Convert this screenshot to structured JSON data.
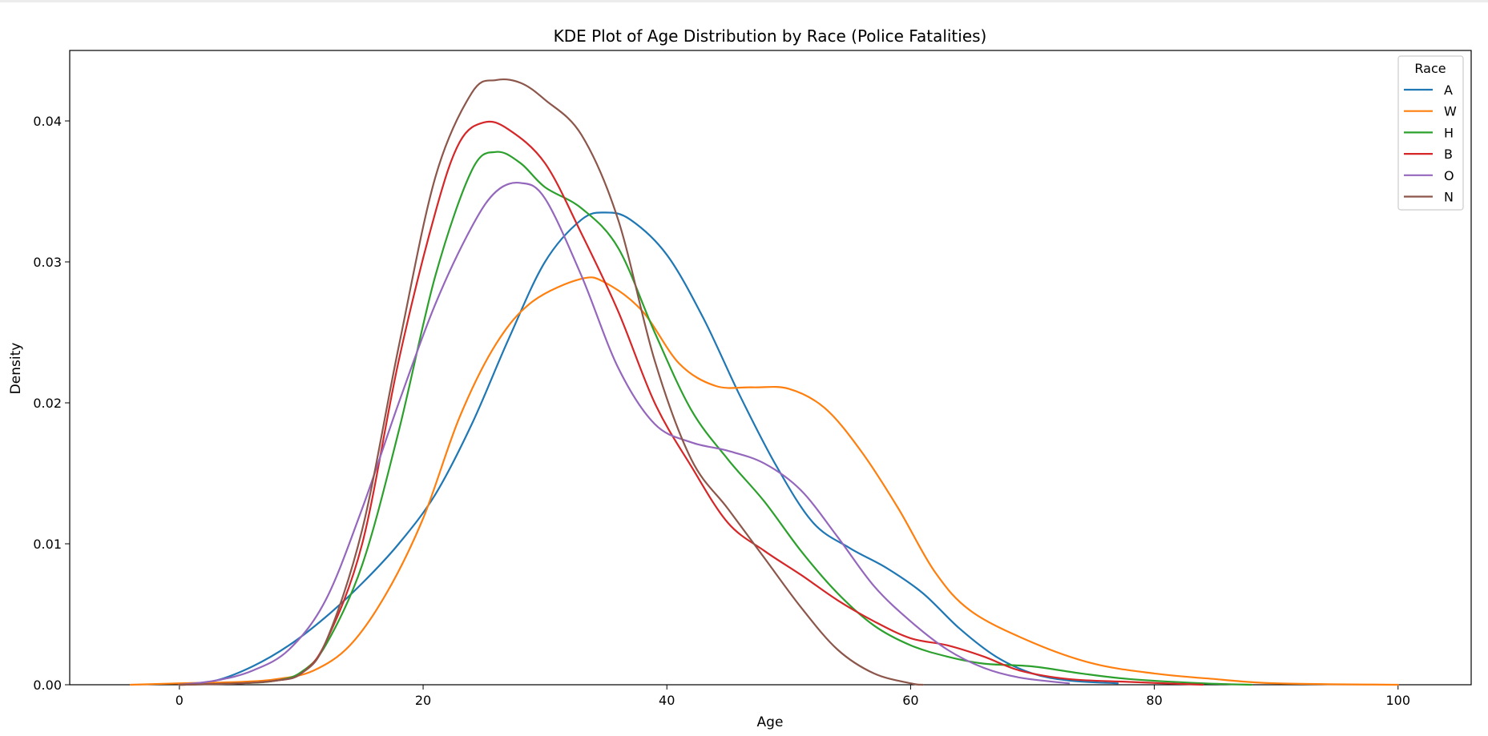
{
  "chart_data": {
    "type": "line",
    "title": "KDE Plot of Age Distribution by Race (Police Fatalities)",
    "xlabel": "Age",
    "ylabel": "Density",
    "xlim": [
      -9,
      106
    ],
    "ylim": [
      0,
      0.045
    ],
    "xticks": [
      0,
      20,
      40,
      60,
      80,
      100
    ],
    "yticks": [
      0.0,
      0.01,
      0.02,
      0.03,
      0.04
    ],
    "xtick_labels": [
      "0",
      "20",
      "40",
      "60",
      "80",
      "100"
    ],
    "ytick_labels": [
      "0.00",
      "0.01",
      "0.02",
      "0.03",
      "0.04"
    ],
    "grid": false,
    "legend": {
      "title": "Race",
      "placement": "top-right"
    },
    "series": [
      {
        "name": "A",
        "color": "#1f77b4",
        "points": [
          [
            0,
            0
          ],
          [
            3,
            0.0003
          ],
          [
            6,
            0.0013
          ],
          [
            9,
            0.0028
          ],
          [
            12,
            0.0048
          ],
          [
            15,
            0.0072
          ],
          [
            18,
            0.01
          ],
          [
            21,
            0.0135
          ],
          [
            24,
            0.0185
          ],
          [
            27,
            0.0245
          ],
          [
            30,
            0.03
          ],
          [
            33,
            0.033
          ],
          [
            35,
            0.0335
          ],
          [
            37,
            0.033
          ],
          [
            40,
            0.0305
          ],
          [
            43,
            0.026
          ],
          [
            46,
            0.0205
          ],
          [
            49,
            0.0155
          ],
          [
            52,
            0.0115
          ],
          [
            55,
            0.0097
          ],
          [
            58,
            0.0083
          ],
          [
            61,
            0.0065
          ],
          [
            64,
            0.004
          ],
          [
            67,
            0.002
          ],
          [
            70,
            0.0008
          ],
          [
            73,
            0.0003
          ],
          [
            77,
            0.0001
          ]
        ]
      },
      {
        "name": "W",
        "color": "#ff7f0e",
        "points": [
          [
            -4,
            0
          ],
          [
            0,
            0.0001
          ],
          [
            5,
            0.0002
          ],
          [
            8,
            0.0004
          ],
          [
            11,
            0.001
          ],
          [
            14,
            0.0028
          ],
          [
            17,
            0.0065
          ],
          [
            20,
            0.0118
          ],
          [
            23,
            0.019
          ],
          [
            26,
            0.0242
          ],
          [
            29,
            0.0272
          ],
          [
            33,
            0.0288
          ],
          [
            35,
            0.0285
          ],
          [
            38,
            0.0265
          ],
          [
            41,
            0.0228
          ],
          [
            44,
            0.0212
          ],
          [
            47,
            0.0211
          ],
          [
            50,
            0.021
          ],
          [
            53,
            0.0196
          ],
          [
            56,
            0.0165
          ],
          [
            59,
            0.0125
          ],
          [
            62,
            0.008
          ],
          [
            65,
            0.0052
          ],
          [
            70,
            0.003
          ],
          [
            75,
            0.0015
          ],
          [
            80,
            0.0008
          ],
          [
            85,
            0.0004
          ],
          [
            90,
            0.0001
          ],
          [
            100,
            0
          ]
        ]
      },
      {
        "name": "H",
        "color": "#2ca02c",
        "points": [
          [
            0,
            0
          ],
          [
            5,
            0.0001
          ],
          [
            8,
            0.0003
          ],
          [
            10,
            0.0009
          ],
          [
            12,
            0.0028
          ],
          [
            15,
            0.0085
          ],
          [
            18,
            0.018
          ],
          [
            21,
            0.029
          ],
          [
            24,
            0.0365
          ],
          [
            26,
            0.0378
          ],
          [
            28,
            0.037
          ],
          [
            30,
            0.0353
          ],
          [
            33,
            0.0338
          ],
          [
            36,
            0.031
          ],
          [
            39,
            0.025
          ],
          [
            42,
            0.0195
          ],
          [
            45,
            0.016
          ],
          [
            48,
            0.013
          ],
          [
            51,
            0.0095
          ],
          [
            54,
            0.0065
          ],
          [
            57,
            0.0042
          ],
          [
            60,
            0.0028
          ],
          [
            63,
            0.002
          ],
          [
            66,
            0.0015
          ],
          [
            70,
            0.0013
          ],
          [
            74,
            0.0008
          ],
          [
            78,
            0.0004
          ],
          [
            84,
            0.0001
          ],
          [
            88,
            0
          ]
        ]
      },
      {
        "name": "B",
        "color": "#d62728",
        "points": [
          [
            0,
            0
          ],
          [
            5,
            0.0001
          ],
          [
            8,
            0.0003
          ],
          [
            10,
            0.0008
          ],
          [
            12,
            0.003
          ],
          [
            15,
            0.01
          ],
          [
            18,
            0.023
          ],
          [
            21,
            0.0335
          ],
          [
            23,
            0.0385
          ],
          [
            25,
            0.0399
          ],
          [
            27,
            0.0394
          ],
          [
            30,
            0.037
          ],
          [
            33,
            0.032
          ],
          [
            36,
            0.0265
          ],
          [
            39,
            0.02
          ],
          [
            42,
            0.0155
          ],
          [
            45,
            0.0115
          ],
          [
            48,
            0.0095
          ],
          [
            51,
            0.0078
          ],
          [
            54,
            0.006
          ],
          [
            57,
            0.0045
          ],
          [
            60,
            0.0033
          ],
          [
            63,
            0.0028
          ],
          [
            66,
            0.002
          ],
          [
            69,
            0.001
          ],
          [
            73,
            0.0004
          ],
          [
            78,
            0.0002
          ],
          [
            84,
            0
          ]
        ]
      },
      {
        "name": "O",
        "color": "#9467bd",
        "points": [
          [
            0,
            0
          ],
          [
            3,
            0.0003
          ],
          [
            6,
            0.001
          ],
          [
            9,
            0.0025
          ],
          [
            12,
            0.006
          ],
          [
            15,
            0.0125
          ],
          [
            18,
            0.02
          ],
          [
            21,
            0.027
          ],
          [
            24,
            0.0325
          ],
          [
            26,
            0.035
          ],
          [
            28,
            0.0356
          ],
          [
            30,
            0.0345
          ],
          [
            33,
            0.029
          ],
          [
            36,
            0.0225
          ],
          [
            39,
            0.0185
          ],
          [
            42,
            0.0172
          ],
          [
            45,
            0.0166
          ],
          [
            48,
            0.0157
          ],
          [
            51,
            0.0138
          ],
          [
            54,
            0.0105
          ],
          [
            57,
            0.007
          ],
          [
            60,
            0.0045
          ],
          [
            63,
            0.0025
          ],
          [
            66,
            0.0012
          ],
          [
            69,
            0.0005
          ],
          [
            73,
            0.0001
          ]
        ]
      },
      {
        "name": "N",
        "color": "#8c564b",
        "points": [
          [
            0,
            0
          ],
          [
            5,
            0.0001
          ],
          [
            8,
            0.0003
          ],
          [
            10,
            0.0008
          ],
          [
            12,
            0.003
          ],
          [
            15,
            0.011
          ],
          [
            18,
            0.024
          ],
          [
            21,
            0.036
          ],
          [
            24,
            0.042
          ],
          [
            26,
            0.0429
          ],
          [
            28,
            0.0427
          ],
          [
            30,
            0.0415
          ],
          [
            33,
            0.039
          ],
          [
            36,
            0.033
          ],
          [
            39,
            0.023
          ],
          [
            42,
            0.016
          ],
          [
            45,
            0.0125
          ],
          [
            48,
            0.009
          ],
          [
            51,
            0.0055
          ],
          [
            54,
            0.0025
          ],
          [
            57,
            0.0008
          ],
          [
            60,
            0.0001
          ],
          [
            61,
            0
          ]
        ]
      }
    ]
  }
}
